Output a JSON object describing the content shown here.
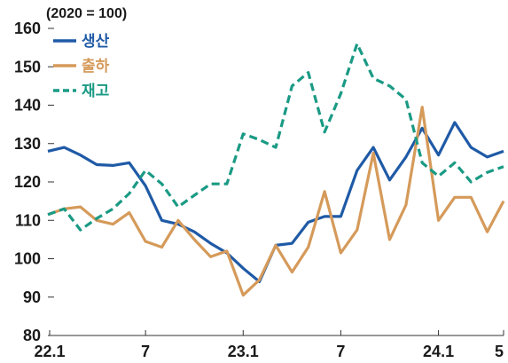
{
  "chart_data": {
    "type": "line",
    "unit_label": "(2020 = 100)",
    "ylim": [
      80,
      160
    ],
    "yticks": [
      "160",
      "150",
      "140",
      "130",
      "120",
      "110",
      "100",
      "90",
      "80"
    ],
    "xtick_labels": [
      "22.1",
      "7",
      "23.1",
      "7",
      "24.1",
      "5"
    ],
    "legend_position": "top-left",
    "series": [
      {
        "name": "생산",
        "color": "#1f5aa6",
        "style": "solid",
        "values": [
          128,
          129,
          127,
          124.5,
          124.3,
          125,
          119,
          110,
          109,
          107,
          104,
          101.5,
          97.5,
          94,
          103.5,
          104,
          109.5,
          111,
          111,
          123,
          129,
          120.5,
          126.5,
          134,
          127,
          135.5,
          129,
          126.5,
          128
        ]
      },
      {
        "name": "출하",
        "color": "#d59a5a",
        "style": "solid",
        "values": [
          111.5,
          113,
          113.5,
          110,
          109,
          112,
          104.5,
          103,
          110,
          105,
          100.5,
          102,
          90.5,
          94.5,
          103.5,
          96.5,
          103,
          117.5,
          101.5,
          107.5,
          127.5,
          105,
          114,
          139.5,
          110,
          116,
          116,
          107,
          115
        ]
      },
      {
        "name": "재고",
        "color": "#1a9a84",
        "style": "dashed",
        "values": [
          111.5,
          113,
          107.5,
          110.5,
          113,
          117,
          123,
          119.5,
          113.5,
          116.5,
          119.5,
          119.5,
          132.5,
          131,
          129,
          145,
          148.5,
          133,
          143,
          156,
          147,
          145,
          141.5,
          125,
          121.5,
          125,
          120,
          122.5,
          124
        ]
      }
    ]
  }
}
